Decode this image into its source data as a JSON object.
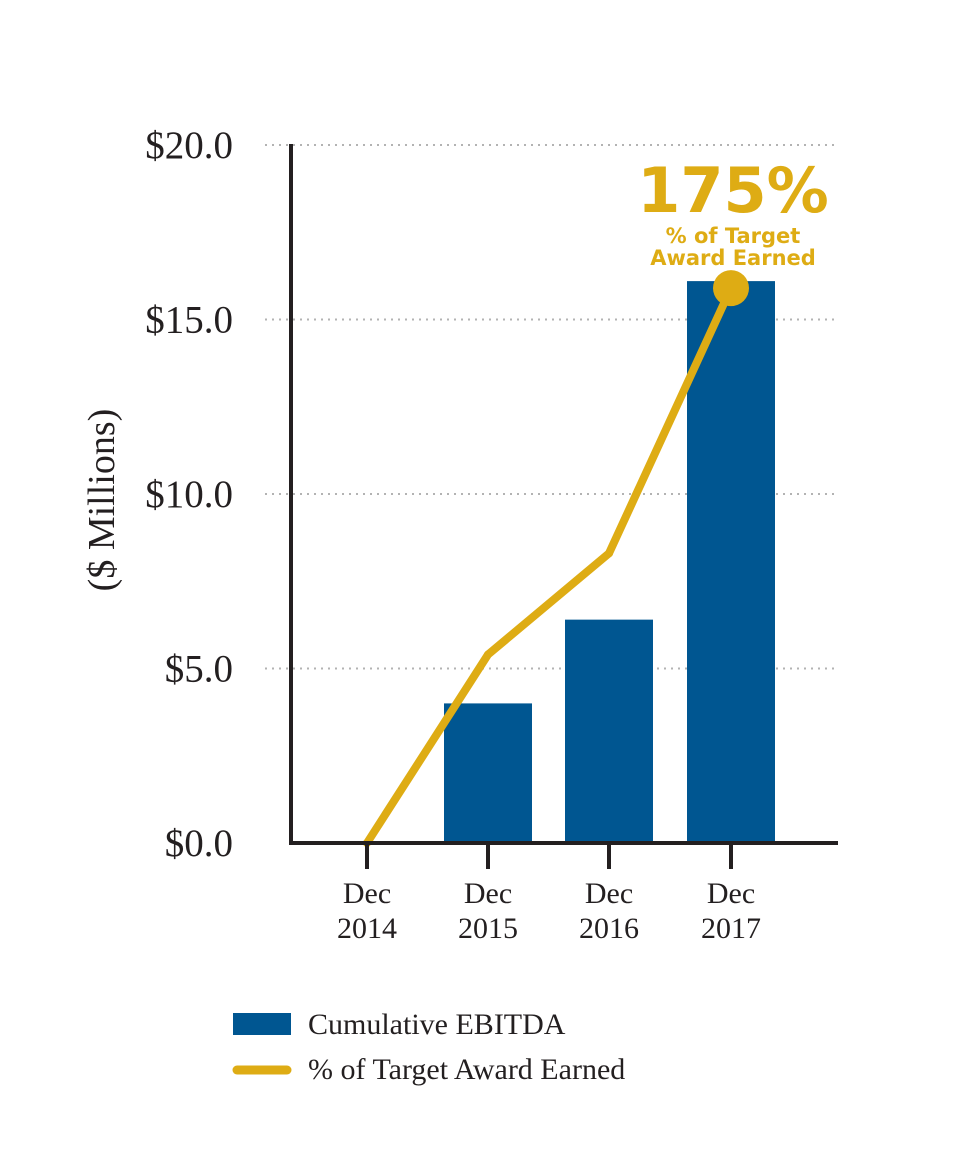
{
  "colors": {
    "bar": "#005691",
    "line": "#deac14",
    "axis": "#231f20",
    "grid": "#b3b3b3",
    "text": "#231f20"
  },
  "chart_data": {
    "type": "bar",
    "ylabel": "($ Millions)",
    "ylim": [
      0,
      20
    ],
    "yticks": [
      {
        "value": 0,
        "label": "$0.0"
      },
      {
        "value": 5,
        "label": "$5.0"
      },
      {
        "value": 10,
        "label": "$10.0"
      },
      {
        "value": 15,
        "label": "$15.0"
      },
      {
        "value": 20,
        "label": "$20.0"
      }
    ],
    "grid": true,
    "categories": [
      {
        "line1": "Dec",
        "line2": "2014"
      },
      {
        "line1": "Dec",
        "line2": "2015"
      },
      {
        "line1": "Dec",
        "line2": "2016"
      },
      {
        "line1": "Dec",
        "line2": "2017"
      }
    ],
    "series": [
      {
        "name": "Cumulative EBITDA",
        "kind": "bar",
        "values": [
          0,
          4.0,
          6.4,
          16.1
        ]
      },
      {
        "name": "% of Target Award Earned",
        "kind": "line",
        "values": [
          0,
          5.4,
          8.3,
          15.9
        ]
      }
    ],
    "annotation": {
      "value": "175%",
      "line1": "% of Target",
      "line2": "Award Earned"
    },
    "legend": {
      "position": "bottom-left",
      "items": [
        "Cumulative EBITDA",
        "% of Target Award Earned"
      ]
    }
  }
}
